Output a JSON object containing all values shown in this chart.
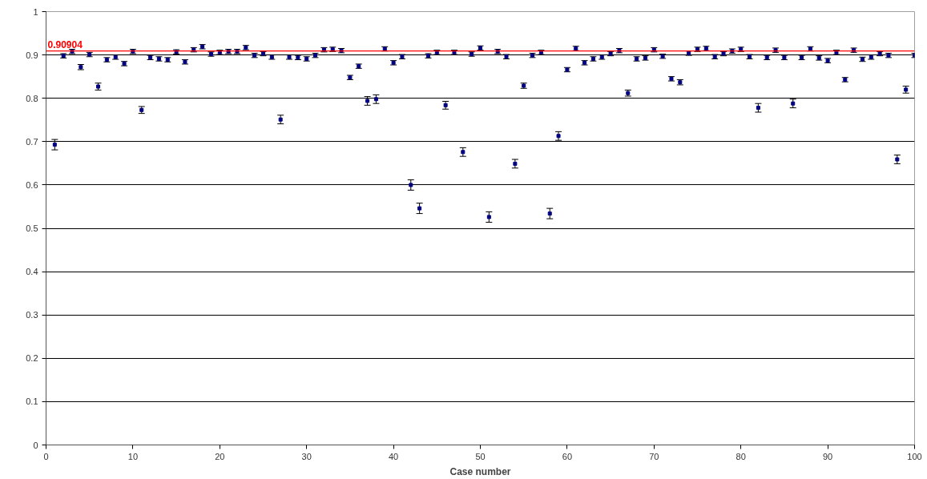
{
  "chart_data": {
    "type": "scatter",
    "xlabel": "Case number",
    "x": [
      1,
      2,
      3,
      4,
      5,
      6,
      7,
      8,
      9,
      10,
      11,
      12,
      13,
      14,
      15,
      16,
      17,
      18,
      19,
      20,
      21,
      22,
      23,
      24,
      25,
      26,
      27,
      28,
      29,
      30,
      31,
      32,
      33,
      34,
      35,
      36,
      37,
      38,
      39,
      40,
      41,
      42,
      43,
      44,
      45,
      46,
      47,
      48,
      49,
      50,
      51,
      52,
      53,
      54,
      55,
      56,
      57,
      58,
      59,
      60,
      61,
      62,
      63,
      64,
      65,
      66,
      67,
      68,
      69,
      70,
      71,
      72,
      73,
      74,
      75,
      76,
      77,
      78,
      79,
      80,
      81,
      82,
      83,
      84,
      85,
      86,
      87,
      88,
      89,
      90,
      91,
      92,
      93,
      94,
      95,
      96,
      97,
      98,
      99,
      100
    ],
    "series": [
      {
        "color": "#000080",
        "values": [
          0.693,
          0.898,
          0.908,
          0.872,
          0.901,
          0.827,
          0.889,
          0.895,
          0.88,
          0.908,
          0.773,
          0.894,
          0.891,
          0.889,
          0.907,
          0.884,
          0.912,
          0.919,
          0.902,
          0.906,
          0.908,
          0.908,
          0.917,
          0.899,
          0.903,
          0.895,
          0.751,
          0.895,
          0.894,
          0.891,
          0.899,
          0.912,
          0.913,
          0.91,
          0.848,
          0.874,
          0.794,
          0.798,
          0.914,
          0.882,
          0.896,
          0.6,
          0.546,
          0.898,
          0.906,
          0.784,
          0.906,
          0.676,
          0.902,
          0.916,
          0.526,
          0.908,
          0.896,
          0.649,
          0.829,
          0.899,
          0.906,
          0.534,
          0.713,
          0.866,
          0.915,
          0.882,
          0.891,
          0.895,
          0.903,
          0.91,
          0.812,
          0.891,
          0.893,
          0.912,
          0.897,
          0.845,
          0.837,
          0.904,
          0.913,
          0.915,
          0.896,
          0.903,
          0.909,
          0.913,
          0.896,
          0.778,
          0.894,
          0.911,
          0.894,
          0.788,
          0.894,
          0.914,
          0.893,
          0.887,
          0.906,
          0.843,
          0.911,
          0.89,
          0.895,
          0.903,
          0.899,
          0.659,
          0.82,
          0.899
        ],
        "errors": [
          0.012,
          0.005,
          0.005,
          0.006,
          0.005,
          0.008,
          0.005,
          0.005,
          0.005,
          0.005,
          0.008,
          0.005,
          0.005,
          0.005,
          0.005,
          0.005,
          0.005,
          0.005,
          0.005,
          0.005,
          0.005,
          0.005,
          0.005,
          0.005,
          0.005,
          0.005,
          0.01,
          0.005,
          0.005,
          0.005,
          0.005,
          0.005,
          0.005,
          0.005,
          0.005,
          0.005,
          0.01,
          0.01,
          0.005,
          0.005,
          0.005,
          0.012,
          0.012,
          0.005,
          0.005,
          0.009,
          0.005,
          0.01,
          0.005,
          0.005,
          0.012,
          0.005,
          0.005,
          0.01,
          0.006,
          0.005,
          0.005,
          0.012,
          0.01,
          0.005,
          0.005,
          0.005,
          0.005,
          0.005,
          0.005,
          0.005,
          0.007,
          0.005,
          0.005,
          0.005,
          0.005,
          0.005,
          0.006,
          0.005,
          0.005,
          0.005,
          0.005,
          0.005,
          0.005,
          0.005,
          0.005,
          0.01,
          0.005,
          0.005,
          0.005,
          0.01,
          0.005,
          0.005,
          0.005,
          0.005,
          0.005,
          0.005,
          0.005,
          0.005,
          0.005,
          0.005,
          0.005,
          0.01,
          0.008,
          0.005
        ]
      }
    ],
    "xlim": [
      0,
      100
    ],
    "xticks": [
      0,
      10,
      20,
      30,
      40,
      50,
      60,
      70,
      80,
      90,
      100
    ],
    "ylim": [
      0,
      1
    ],
    "yticks": [
      0,
      0.1,
      0.2,
      0.3,
      0.4,
      0.5,
      0.6,
      0.7,
      0.8,
      0.9,
      1
    ],
    "ref_lines": [
      {
        "axis": "y",
        "value": 0.90904,
        "label": "0.90904",
        "color": "#ff0000"
      }
    ],
    "grid": "y",
    "marker": "square"
  }
}
